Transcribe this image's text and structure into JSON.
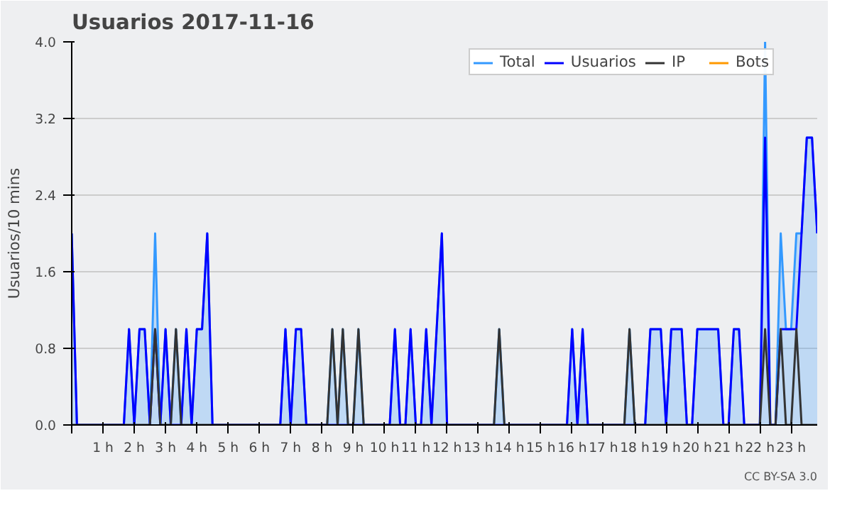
{
  "chart_data": {
    "type": "line",
    "title": "Usuarios  2017-11-16",
    "ylabel": "Usuarios/10 mins",
    "annotations": [
      "CC BY-SA 3.0"
    ],
    "x": [
      0,
      0.167,
      0.333,
      0.5,
      0.667,
      0.833,
      1,
      1.167,
      1.333,
      1.5,
      1.667,
      1.833,
      2,
      2.167,
      2.333,
      2.5,
      2.667,
      2.833,
      3,
      3.167,
      3.333,
      3.5,
      3.667,
      3.833,
      4,
      4.167,
      4.333,
      4.5,
      4.667,
      4.833,
      5,
      5.167,
      5.333,
      5.5,
      5.667,
      5.833,
      6,
      6.167,
      6.333,
      6.5,
      6.667,
      6.833,
      7,
      7.167,
      7.333,
      7.5,
      7.667,
      7.833,
      8,
      8.167,
      8.333,
      8.5,
      8.667,
      8.833,
      9,
      9.167,
      9.333,
      9.5,
      9.667,
      9.833,
      10,
      10.167,
      10.333,
      10.5,
      10.667,
      10.833,
      11,
      11.167,
      11.333,
      11.5,
      11.667,
      11.833,
      12,
      12.167,
      12.333,
      12.5,
      12.667,
      12.833,
      13,
      13.167,
      13.333,
      13.5,
      13.667,
      13.833,
      14,
      14.167,
      14.333,
      14.5,
      14.667,
      14.833,
      15,
      15.167,
      15.333,
      15.5,
      15.667,
      15.833,
      16,
      16.167,
      16.333,
      16.5,
      16.667,
      16.833,
      17,
      17.167,
      17.333,
      17.5,
      17.667,
      17.833,
      18,
      18.167,
      18.333,
      18.5,
      18.667,
      18.833,
      19,
      19.167,
      19.333,
      19.5,
      19.667,
      19.833,
      20,
      20.167,
      20.333,
      20.5,
      20.667,
      20.833,
      21,
      21.167,
      21.333,
      21.5,
      21.667,
      21.833,
      22,
      22.167,
      22.333,
      22.5,
      22.667,
      22.833,
      23,
      23.167,
      23.333,
      23.5,
      23.667,
      23.833
    ],
    "series": [
      {
        "name": "Total",
        "type": "area",
        "color": "#3399ff",
        "values": [
          2,
          0,
          0,
          0,
          0,
          0,
          0,
          0,
          0,
          0,
          0,
          1,
          0,
          1,
          1,
          0,
          2,
          0,
          1,
          0,
          1,
          0,
          1,
          0,
          1,
          1,
          2,
          0,
          0,
          0,
          0,
          0,
          0,
          0,
          0,
          0,
          0,
          0,
          0,
          0,
          0,
          1,
          0,
          1,
          1,
          0,
          0,
          0,
          0,
          0,
          1,
          0,
          1,
          0,
          0,
          1,
          0,
          0,
          0,
          0,
          0,
          0,
          1,
          0,
          0,
          1,
          0,
          0,
          1,
          0,
          1,
          2,
          0,
          0,
          0,
          0,
          0,
          0,
          0,
          0,
          0,
          0,
          1,
          0,
          0,
          0,
          0,
          0,
          0,
          0,
          0,
          0,
          0,
          0,
          0,
          0,
          1,
          0,
          1,
          0,
          0,
          0,
          0,
          0,
          0,
          0,
          0,
          1,
          0,
          0,
          0,
          1,
          1,
          1,
          0,
          1,
          1,
          1,
          0,
          0,
          1,
          1,
          1,
          1,
          1,
          0,
          0,
          1,
          1,
          0,
          0,
          0,
          0,
          4,
          0,
          0,
          2,
          1,
          1,
          2,
          2,
          3,
          3,
          2
        ]
      },
      {
        "name": "Usuarios",
        "color": "#0000ff",
        "values": [
          2,
          0,
          0,
          0,
          0,
          0,
          0,
          0,
          0,
          0,
          0,
          1,
          0,
          1,
          1,
          0,
          1,
          0,
          1,
          0,
          0,
          0,
          1,
          0,
          1,
          1,
          2,
          0,
          0,
          0,
          0,
          0,
          0,
          0,
          0,
          0,
          0,
          0,
          0,
          0,
          0,
          1,
          0,
          1,
          1,
          0,
          0,
          0,
          0,
          0,
          0,
          0,
          0,
          0,
          0,
          0,
          0,
          0,
          0,
          0,
          0,
          0,
          1,
          0,
          0,
          1,
          0,
          0,
          1,
          0,
          1,
          2,
          0,
          0,
          0,
          0,
          0,
          0,
          0,
          0,
          0,
          0,
          0,
          0,
          0,
          0,
          0,
          0,
          0,
          0,
          0,
          0,
          0,
          0,
          0,
          0,
          1,
          0,
          1,
          0,
          0,
          0,
          0,
          0,
          0,
          0,
          0,
          0,
          0,
          0,
          0,
          1,
          1,
          1,
          0,
          1,
          1,
          1,
          0,
          0,
          1,
          1,
          1,
          1,
          1,
          0,
          0,
          1,
          1,
          0,
          0,
          0,
          0,
          3,
          0,
          0,
          1,
          1,
          1,
          1,
          2,
          3,
          3,
          2
        ]
      },
      {
        "name": "IP",
        "color": "#333333",
        "values": [
          0,
          0,
          0,
          0,
          0,
          0,
          0,
          0,
          0,
          0,
          0,
          0,
          0,
          0,
          0,
          0,
          1,
          0,
          0,
          0,
          1,
          0,
          0,
          0,
          0,
          0,
          0,
          0,
          0,
          0,
          0,
          0,
          0,
          0,
          0,
          0,
          0,
          0,
          0,
          0,
          0,
          0,
          0,
          0,
          0,
          0,
          0,
          0,
          0,
          0,
          1,
          0,
          1,
          0,
          0,
          1,
          0,
          0,
          0,
          0,
          0,
          0,
          0,
          0,
          0,
          0,
          0,
          0,
          0,
          0,
          0,
          0,
          0,
          0,
          0,
          0,
          0,
          0,
          0,
          0,
          0,
          0,
          1,
          0,
          0,
          0,
          0,
          0,
          0,
          0,
          0,
          0,
          0,
          0,
          0,
          0,
          0,
          0,
          0,
          0,
          0,
          0,
          0,
          0,
          0,
          0,
          0,
          1,
          0,
          0,
          0,
          0,
          0,
          0,
          0,
          0,
          0,
          0,
          0,
          0,
          0,
          0,
          0,
          0,
          0,
          0,
          0,
          0,
          0,
          0,
          0,
          0,
          0,
          1,
          0,
          0,
          1,
          0,
          0,
          1,
          0,
          0,
          0,
          0
        ]
      },
      {
        "name": "Bots",
        "color": "#ff9900",
        "values": [
          null,
          null,
          null,
          null,
          null,
          null,
          null,
          null,
          null,
          null,
          null,
          null,
          null,
          null,
          null,
          null,
          null,
          null,
          null,
          null,
          null,
          null,
          null,
          null,
          null,
          null,
          null,
          null,
          null,
          null,
          null,
          null,
          null,
          null,
          null,
          null,
          null,
          null,
          null,
          null,
          null,
          null,
          null,
          null,
          null,
          null,
          null,
          null,
          null,
          null,
          null,
          null,
          null,
          null,
          null,
          null,
          null,
          null,
          null,
          null,
          null,
          null,
          null,
          null,
          null,
          null,
          null,
          null,
          null,
          null,
          null,
          null,
          null,
          null,
          null,
          null,
          null,
          null,
          null,
          null,
          null,
          null,
          null,
          null,
          null,
          null,
          null,
          null,
          null,
          null,
          null,
          null,
          null,
          null,
          null,
          null,
          null,
          null,
          null,
          null,
          null,
          null,
          null,
          null,
          null,
          null,
          null,
          null,
          null,
          null,
          null,
          null,
          null,
          null,
          null,
          null,
          null,
          null,
          null,
          null,
          null,
          null,
          null,
          null,
          null,
          null,
          null,
          null,
          null,
          null,
          null,
          null,
          null,
          null,
          null,
          null,
          null,
          null,
          null,
          null,
          null,
          null,
          null,
          null
        ]
      }
    ],
    "xlim": [
      0,
      23.833
    ],
    "xticks": [
      {
        "value": 0,
        "label": null
      },
      {
        "value": 1,
        "label": "1 h"
      },
      {
        "value": 2,
        "label": "2 h"
      },
      {
        "value": 3,
        "label": "3 h"
      },
      {
        "value": 4,
        "label": "4 h"
      },
      {
        "value": 5,
        "label": "5 h"
      },
      {
        "value": 6,
        "label": "6 h"
      },
      {
        "value": 7,
        "label": "7 h"
      },
      {
        "value": 8,
        "label": "8 h"
      },
      {
        "value": 9,
        "label": "9 h"
      },
      {
        "value": 10,
        "label": "10 h"
      },
      {
        "value": 11,
        "label": "11 h"
      },
      {
        "value": 12,
        "label": "12 h"
      },
      {
        "value": 13,
        "label": "13 h"
      },
      {
        "value": 14,
        "label": "14 h"
      },
      {
        "value": 15,
        "label": "15 h"
      },
      {
        "value": 16,
        "label": "16 h"
      },
      {
        "value": 17,
        "label": "17 h"
      },
      {
        "value": 18,
        "label": "18 h"
      },
      {
        "value": 19,
        "label": "19 h"
      },
      {
        "value": 20,
        "label": "20 h"
      },
      {
        "value": 21,
        "label": "21 h"
      },
      {
        "value": 22,
        "label": "22 h"
      },
      {
        "value": 23,
        "label": "23 h"
      }
    ],
    "ylim": [
      0,
      4
    ],
    "yticks": [
      {
        "value": 0,
        "label": "0.0"
      },
      {
        "value": 0.8,
        "label": "0.8"
      },
      {
        "value": 1.6,
        "label": "1.6"
      },
      {
        "value": 2.4,
        "label": "2.4"
      },
      {
        "value": 3.2,
        "label": "3.2"
      },
      {
        "value": 4,
        "label": "4.0"
      }
    ],
    "grid": "y",
    "legend": "top right",
    "marker": "none",
    "line_style": "solid"
  }
}
